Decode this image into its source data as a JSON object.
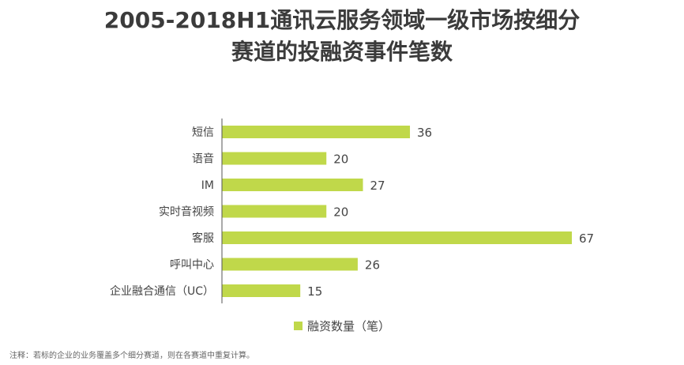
{
  "chart_data": {
    "type": "bar",
    "orientation": "horizontal",
    "title": [
      "2005-2018H1通讯云服务领域一级市场按细分",
      "赛道的投融资事件笔数"
    ],
    "categories": [
      "短信",
      "语音",
      "IM",
      "实时音视频",
      "客服",
      "呼叫中心",
      "企业融合通信（UC）"
    ],
    "series": [
      {
        "name": "融资数量（笔）",
        "values": [
          36,
          20,
          27,
          20,
          67,
          26,
          15
        ]
      }
    ],
    "xlim": [
      0,
      67
    ],
    "grid": false,
    "legend_position": "bottom",
    "colors": {
      "bar": "#c0d84a"
    }
  },
  "note": "注释：若标的企业的业务覆盖多个细分赛道，则在各赛道中重复计算。"
}
